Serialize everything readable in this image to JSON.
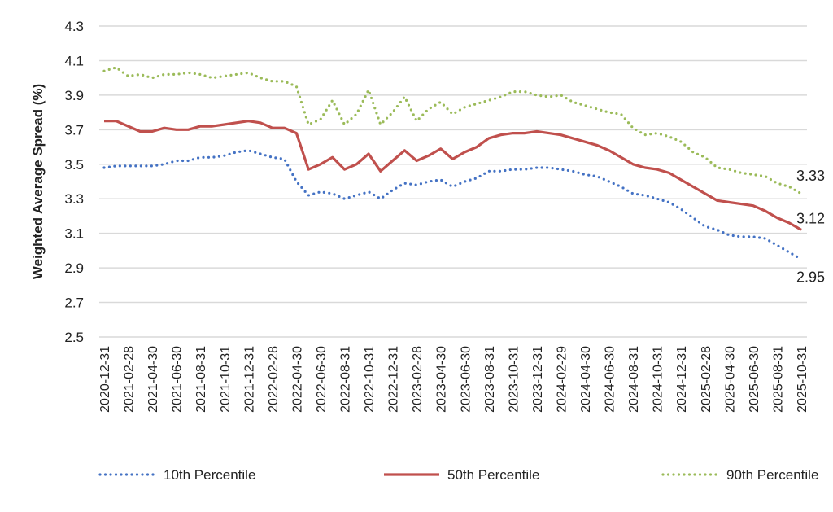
{
  "chart_data": {
    "type": "line",
    "title": "",
    "xlabel": "",
    "ylabel": "Weighted Average Spread (%)",
    "ylim": [
      2.5,
      4.3
    ],
    "yticks": [
      "4.3",
      "4.1",
      "3.9",
      "3.7",
      "3.5",
      "3.3",
      "3.1",
      "2.9",
      "2.7",
      "2.5"
    ],
    "grid": true,
    "legend_position": "bottom",
    "x": [
      "2020-12-31",
      "2021-01-31",
      "2021-02-28",
      "2021-03-31",
      "2021-04-30",
      "2021-05-31",
      "2021-06-30",
      "2021-07-31",
      "2021-08-31",
      "2021-09-30",
      "2021-10-31",
      "2021-11-30",
      "2021-12-31",
      "2022-01-31",
      "2022-02-28",
      "2022-03-31",
      "2022-04-30",
      "2022-05-31",
      "2022-06-30",
      "2022-07-31",
      "2022-08-31",
      "2022-09-30",
      "2022-10-31",
      "2022-11-30",
      "2022-12-31",
      "2023-01-31",
      "2023-02-28",
      "2023-03-31",
      "2023-04-30",
      "2023-05-31",
      "2023-06-30",
      "2023-07-31",
      "2023-08-31",
      "2023-09-30",
      "2023-10-31",
      "2023-11-30",
      "2023-12-31",
      "2024-01-31",
      "2024-02-29",
      "2024-03-31",
      "2024-04-30",
      "2024-05-31",
      "2024-06-30",
      "2024-07-31",
      "2024-08-31",
      "2024-09-30",
      "2024-10-31",
      "2024-11-30",
      "2024-12-31",
      "2025-01-31",
      "2025-02-28",
      "2025-03-31",
      "2025-04-30",
      "2025-05-31",
      "2025-06-30",
      "2025-07-31",
      "2025-08-31",
      "2025-09-30",
      "2025-10-31"
    ],
    "series": [
      {
        "name": "10th Percentile",
        "color": "#4472C4",
        "style": "dotted",
        "end_label": "2.95",
        "values": [
          3.48,
          3.49,
          3.49,
          3.49,
          3.49,
          3.5,
          3.52,
          3.52,
          3.54,
          3.54,
          3.55,
          3.57,
          3.58,
          3.56,
          3.54,
          3.53,
          3.4,
          3.32,
          3.34,
          3.33,
          3.3,
          3.32,
          3.34,
          3.3,
          3.35,
          3.39,
          3.38,
          3.4,
          3.41,
          3.37,
          3.4,
          3.42,
          3.46,
          3.46,
          3.47,
          3.47,
          3.48,
          3.48,
          3.47,
          3.46,
          3.44,
          3.43,
          3.4,
          3.37,
          3.33,
          3.32,
          3.3,
          3.28,
          3.24,
          3.19,
          3.14,
          3.12,
          3.09,
          3.08,
          3.08,
          3.07,
          3.03,
          2.99,
          2.95
        ]
      },
      {
        "name": "50th Percentile",
        "color": "#C0504D",
        "style": "solid",
        "end_label": "3.12",
        "values": [
          3.75,
          3.75,
          3.72,
          3.69,
          3.69,
          3.71,
          3.7,
          3.7,
          3.72,
          3.72,
          3.73,
          3.74,
          3.75,
          3.74,
          3.71,
          3.71,
          3.68,
          3.47,
          3.5,
          3.54,
          3.47,
          3.5,
          3.56,
          3.46,
          3.52,
          3.58,
          3.52,
          3.55,
          3.59,
          3.53,
          3.57,
          3.6,
          3.65,
          3.67,
          3.68,
          3.68,
          3.69,
          3.68,
          3.67,
          3.65,
          3.63,
          3.61,
          3.58,
          3.54,
          3.5,
          3.48,
          3.47,
          3.45,
          3.41,
          3.37,
          3.33,
          3.29,
          3.28,
          3.27,
          3.26,
          3.23,
          3.19,
          3.16,
          3.12
        ]
      },
      {
        "name": "90th Percentile",
        "color": "#9BBB59",
        "style": "dotted",
        "end_label": "3.33",
        "values": [
          4.04,
          4.06,
          4.01,
          4.02,
          4.0,
          4.02,
          4.02,
          4.03,
          4.02,
          4.0,
          4.01,
          4.02,
          4.03,
          4.0,
          3.98,
          3.98,
          3.95,
          3.73,
          3.76,
          3.87,
          3.73,
          3.79,
          3.93,
          3.73,
          3.8,
          3.89,
          3.75,
          3.82,
          3.86,
          3.79,
          3.83,
          3.85,
          3.87,
          3.89,
          3.92,
          3.92,
          3.9,
          3.89,
          3.9,
          3.86,
          3.84,
          3.82,
          3.8,
          3.79,
          3.71,
          3.67,
          3.68,
          3.66,
          3.63,
          3.57,
          3.54,
          3.48,
          3.47,
          3.45,
          3.44,
          3.43,
          3.39,
          3.37,
          3.33
        ]
      }
    ]
  }
}
